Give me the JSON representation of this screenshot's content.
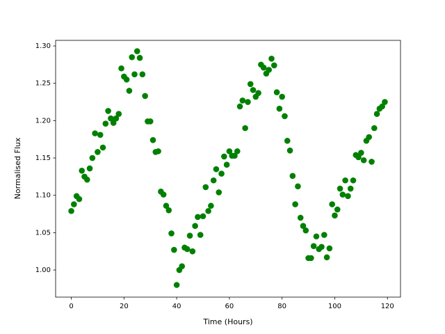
{
  "chart_data": {
    "type": "scatter",
    "x_label": "Time (Hours)",
    "y_label": "Normalised Flux",
    "color": "green",
    "x": [
      0,
      1,
      2,
      3,
      4,
      5,
      6,
      7,
      8,
      9,
      10,
      11,
      12,
      13,
      14,
      15,
      16,
      17,
      18,
      19,
      20,
      21,
      22,
      23,
      24,
      25,
      26,
      27,
      28,
      29,
      30,
      31,
      32,
      33,
      34,
      35,
      36,
      37,
      38,
      39,
      40,
      41,
      42,
      43,
      44,
      45,
      46,
      47,
      48,
      49,
      50,
      51,
      52,
      53,
      54,
      55,
      56,
      57,
      58,
      59,
      60,
      61,
      62,
      63,
      64,
      65,
      66,
      67,
      68,
      69,
      70,
      71,
      72,
      73,
      74,
      75,
      76,
      77,
      78,
      79,
      80,
      81,
      82,
      83,
      84,
      85,
      86,
      87,
      88,
      89,
      90,
      91,
      92,
      93,
      94,
      95,
      96,
      97,
      98,
      99,
      100,
      101,
      102,
      103,
      104,
      105,
      106,
      107,
      108,
      109,
      110,
      111,
      112,
      113,
      114,
      115,
      116,
      117,
      118,
      119
    ],
    "values": [
      1.079,
      1.088,
      1.099,
      1.095,
      1.133,
      1.125,
      1.121,
      1.136,
      1.15,
      1.183,
      1.158,
      1.181,
      1.164,
      1.196,
      1.213,
      1.203,
      1.197,
      1.203,
      1.209,
      1.27,
      1.259,
      1.255,
      1.24,
      1.285,
      1.262,
      1.293,
      1.284,
      1.262,
      1.233,
      1.199,
      1.199,
      1.174,
      1.158,
      1.159,
      1.105,
      1.101,
      1.086,
      1.08,
      1.049,
      1.027,
      0.98,
      1.0,
      1.005,
      1.03,
      1.028,
      1.046,
      1.025,
      1.059,
      1.071,
      1.047,
      1.072,
      1.111,
      1.079,
      1.086,
      1.12,
      1.135,
      1.104,
      1.129,
      1.152,
      1.141,
      1.159,
      1.153,
      1.153,
      1.159,
      1.219,
      1.227,
      1.19,
      1.225,
      1.249,
      1.241,
      1.232,
      1.237,
      1.275,
      1.271,
      1.263,
      1.268,
      1.283,
      1.274,
      1.238,
      1.216,
      1.232,
      1.206,
      1.173,
      1.16,
      1.126,
      1.088,
      1.112,
      1.07,
      1.059,
      1.053,
      1.016,
      1.016,
      1.032,
      1.045,
      1.028,
      1.031,
      1.047,
      1.017,
      1.029,
      1.088,
      1.073,
      1.081,
      1.109,
      1.101,
      1.12,
      1.099,
      1.109,
      1.12,
      1.154,
      1.151,
      1.157,
      1.147,
      1.173,
      1.178,
      1.145,
      1.19,
      1.209,
      1.216,
      1.219,
      1.225
    ],
    "xlim": [
      -5.95,
      124.95
    ],
    "xticks": [
      0,
      20,
      40,
      60,
      80,
      100,
      120
    ],
    "ylim": [
      0.9637,
      1.3075
    ],
    "yticks": [
      {
        "value": 1.0,
        "label": "1.00"
      },
      1.05,
      {
        "value": 1.1,
        "label": "1.10"
      },
      1.15,
      {
        "value": 1.2,
        "label": "1.20"
      },
      1.25,
      {
        "value": 1.3,
        "label": "1.30"
      }
    ],
    "grid": false
  }
}
